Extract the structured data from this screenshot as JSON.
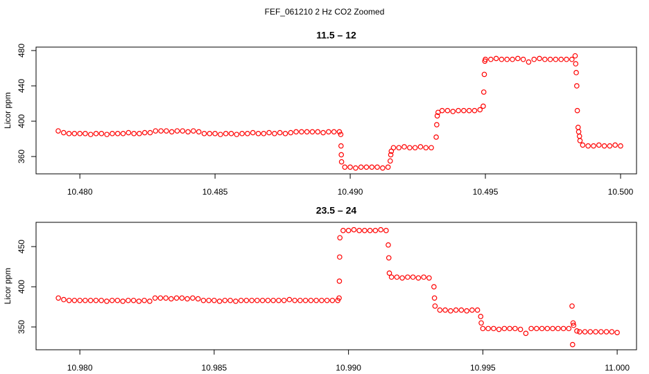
{
  "title": "FEF_061210  2 Hz CO2 Zoomed",
  "chart_data": [
    {
      "type": "scatter",
      "title": "11.5 – 12",
      "ylabel": "Licor ppm",
      "color": "#ff0000",
      "xlim": [
        10.47838,
        10.50059
      ],
      "ylim": [
        340.4,
        483.9
      ],
      "xticks": [
        {
          "value": 10.48,
          "label": "10.480"
        },
        {
          "value": 10.485,
          "label": "10.485"
        },
        {
          "value": 10.49,
          "label": "10.490"
        },
        {
          "value": 10.495,
          "label": "10.495"
        },
        {
          "value": 10.5,
          "label": "10.500"
        }
      ],
      "yticks": [
        360,
        400,
        440,
        480
      ],
      "x": [
        10.4792,
        10.4794,
        10.4796,
        10.4798,
        10.48,
        10.4802,
        10.4804,
        10.4806,
        10.4808,
        10.481,
        10.4812,
        10.4814,
        10.4816,
        10.4818,
        10.482,
        10.4822,
        10.4824,
        10.4826,
        10.4828,
        10.483,
        10.4832,
        10.4834,
        10.4836,
        10.4838,
        10.484,
        10.4842,
        10.4844,
        10.4846,
        10.4848,
        10.485,
        10.4852,
        10.4854,
        10.4856,
        10.4858,
        10.486,
        10.4862,
        10.4864,
        10.4866,
        10.4868,
        10.487,
        10.4872,
        10.4874,
        10.4876,
        10.4878,
        10.488,
        10.4882,
        10.4884,
        10.4886,
        10.4888,
        10.489,
        10.4892,
        10.4894,
        10.4896,
        10.48965,
        10.48966,
        10.48967,
        10.48968,
        10.4898,
        10.49,
        10.4902,
        10.4904,
        10.4906,
        10.4908,
        10.491,
        10.4912,
        10.4914,
        10.49148,
        10.4915,
        10.49152,
        10.4916,
        10.4918,
        10.492,
        10.4922,
        10.4924,
        10.4926,
        10.4928,
        10.493,
        10.49318,
        10.4932,
        10.49322,
        10.49325,
        10.4934,
        10.4936,
        10.4938,
        10.494,
        10.4942,
        10.4944,
        10.4946,
        10.4948,
        10.49492,
        10.49494,
        10.49496,
        10.49498,
        10.495,
        10.4952,
        10.4954,
        10.4956,
        10.4958,
        10.496,
        10.4962,
        10.4964,
        10.4966,
        10.4968,
        10.497,
        10.4972,
        10.4974,
        10.4976,
        10.4978,
        10.498,
        10.4982,
        10.49832,
        10.49834,
        10.49836,
        10.49838,
        10.4984,
        10.49843,
        10.49845,
        10.49848,
        10.4985,
        10.4986,
        10.4988,
        10.499,
        10.4992,
        10.4994,
        10.4996,
        10.4998,
        10.5
      ],
      "values": [
        389,
        387,
        386,
        386,
        386,
        386,
        385,
        386,
        386,
        385,
        386,
        386,
        386,
        387,
        386,
        386,
        387,
        387,
        389,
        389,
        389,
        388,
        389,
        389,
        388,
        389,
        388,
        386,
        386,
        386,
        385,
        386,
        386,
        385,
        386,
        386,
        387,
        386,
        386,
        387,
        386,
        387,
        386,
        387,
        388,
        388,
        388,
        388,
        388,
        387,
        388,
        388,
        388,
        385,
        372,
        362,
        354,
        348,
        348,
        347,
        348,
        348,
        348,
        348,
        347,
        348,
        355,
        362,
        366,
        370,
        370,
        371,
        370,
        370,
        371,
        370,
        370,
        382,
        396,
        406,
        410,
        412,
        412,
        411,
        412,
        412,
        412,
        412,
        413,
        417,
        433,
        453,
        468,
        470,
        470,
        471,
        470,
        470,
        470,
        471,
        470,
        467,
        470,
        471,
        470,
        470,
        470,
        470,
        470,
        470,
        474,
        465,
        455,
        440,
        412,
        393,
        388,
        383,
        378,
        373,
        372,
        372,
        373,
        372,
        372,
        373,
        372
      ]
    },
    {
      "type": "scatter",
      "title": "23.5 – 24",
      "ylabel": "Licor ppm",
      "color": "#ff0000",
      "xlim": [
        10.97837,
        11.00072
      ],
      "ylim": [
        321.6,
        480.2
      ],
      "xticks": [
        {
          "value": 10.98,
          "label": "10.980"
        },
        {
          "value": 10.985,
          "label": "10.985"
        },
        {
          "value": 10.99,
          "label": "10.990"
        },
        {
          "value": 10.995,
          "label": "10.995"
        },
        {
          "value": 11,
          "label": "11.000"
        }
      ],
      "yticks": [
        350,
        400,
        450
      ],
      "x": [
        10.9792,
        10.9794,
        10.9796,
        10.9798,
        10.98,
        10.9802,
        10.9804,
        10.9806,
        10.9808,
        10.981,
        10.9812,
        10.9814,
        10.9816,
        10.9818,
        10.982,
        10.9822,
        10.9824,
        10.9826,
        10.9828,
        10.983,
        10.9832,
        10.9834,
        10.9836,
        10.9838,
        10.984,
        10.9842,
        10.9844,
        10.9846,
        10.9848,
        10.985,
        10.9852,
        10.9854,
        10.9856,
        10.9858,
        10.986,
        10.9862,
        10.9864,
        10.9866,
        10.9868,
        10.987,
        10.9872,
        10.9874,
        10.9876,
        10.9878,
        10.988,
        10.9882,
        10.9884,
        10.9886,
        10.9888,
        10.989,
        10.9892,
        10.9894,
        10.9896,
        10.98965,
        10.98966,
        10.98967,
        10.98968,
        10.9898,
        10.99,
        10.9902,
        10.9904,
        10.9906,
        10.9908,
        10.991,
        10.9912,
        10.9914,
        10.99148,
        10.9915,
        10.99152,
        10.9916,
        10.9918,
        10.992,
        10.9922,
        10.9924,
        10.9926,
        10.9928,
        10.993,
        10.99318,
        10.9932,
        10.99322,
        10.9934,
        10.9936,
        10.9938,
        10.994,
        10.9942,
        10.9944,
        10.9946,
        10.9948,
        10.99492,
        10.99494,
        10.995,
        10.9952,
        10.9954,
        10.9956,
        10.9958,
        10.996,
        10.9962,
        10.9964,
        10.9966,
        10.9968,
        10.997,
        10.9972,
        10.9974,
        10.9976,
        10.9978,
        10.998,
        10.9982,
        10.99832,
        10.99834,
        10.99836,
        10.99838,
        10.9985,
        10.9986,
        10.9988,
        10.999,
        10.9992,
        10.9994,
        10.9996,
        10.9998,
        11
      ],
      "values": [
        386,
        384,
        383,
        383,
        383,
        383,
        383,
        383,
        383,
        382,
        383,
        383,
        382,
        383,
        383,
        382,
        383,
        382,
        386,
        386,
        386,
        385,
        386,
        386,
        385,
        386,
        385,
        383,
        383,
        383,
        382,
        383,
        383,
        382,
        383,
        383,
        383,
        383,
        383,
        383,
        383,
        383,
        383,
        384,
        383,
        383,
        383,
        383,
        383,
        383,
        383,
        383,
        383,
        386,
        407,
        437,
        461,
        470,
        470,
        471,
        470,
        470,
        470,
        470,
        471,
        470,
        452,
        436,
        417,
        412,
        412,
        411,
        412,
        412,
        411,
        412,
        411,
        400,
        386,
        376,
        371,
        371,
        370,
        371,
        371,
        370,
        371,
        371,
        363,
        355,
        348,
        348,
        348,
        347,
        348,
        348,
        348,
        347,
        342,
        348,
        348,
        348,
        348,
        348,
        348,
        348,
        348,
        376,
        328,
        355,
        352,
        345,
        344,
        344,
        344,
        344,
        344,
        344,
        344,
        343
      ]
    }
  ]
}
